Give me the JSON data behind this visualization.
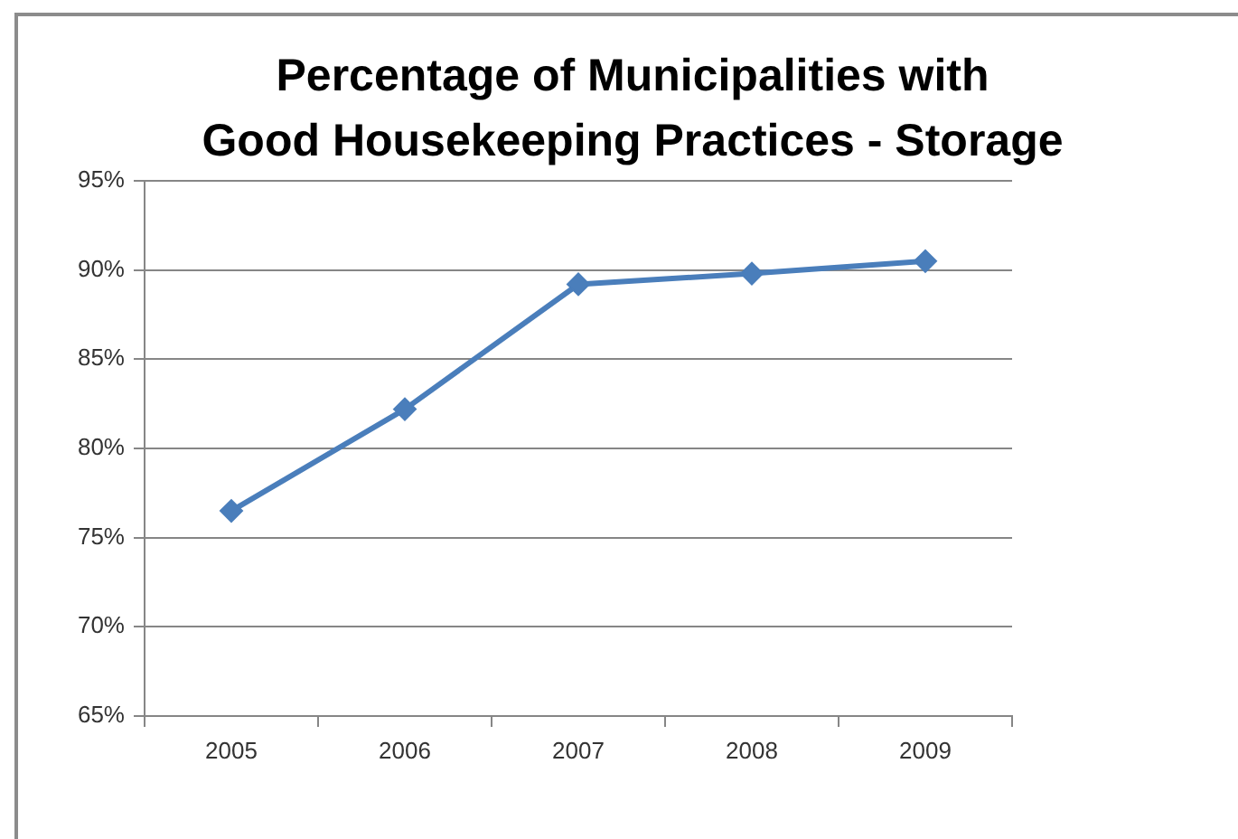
{
  "chart_data": {
    "type": "line",
    "title": "Percentage of Municipalities with Good Housekeeping Practices - Storage",
    "categories": [
      "2005",
      "2006",
      "2007",
      "2008",
      "2009"
    ],
    "values": [
      76.5,
      82.2,
      89.2,
      89.8,
      90.5
    ],
    "color": "#4a7ebb",
    "ylim": [
      65,
      95
    ],
    "yticks": [
      {
        "value": 65,
        "label": "65%"
      },
      {
        "value": 70,
        "label": "70%"
      },
      {
        "value": 75,
        "label": "75%"
      },
      {
        "value": 80,
        "label": "80%"
      },
      {
        "value": 85,
        "label": "85%"
      },
      {
        "value": 90,
        "label": "90%"
      },
      {
        "value": 95,
        "label": "95%"
      }
    ],
    "grid": "y",
    "legend": false,
    "marker": "diamond",
    "line_style": "solid"
  }
}
